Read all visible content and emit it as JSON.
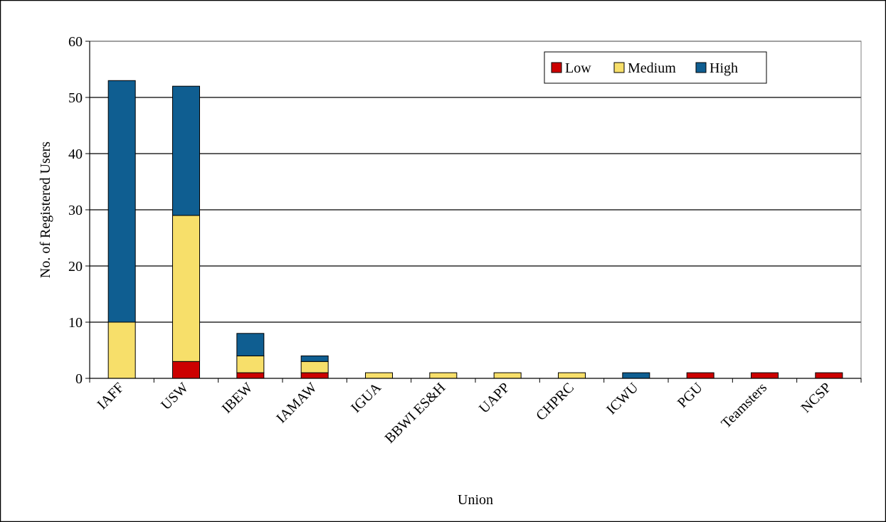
{
  "chart_data": {
    "type": "bar",
    "stacked": true,
    "title": "",
    "xlabel": "Union",
    "ylabel": "No. of Registered Users",
    "ylim": [
      0,
      60
    ],
    "yticks": [
      0,
      10,
      20,
      30,
      40,
      50,
      60
    ],
    "grid": true,
    "legend_position": "top-right",
    "categories": [
      "IAFF",
      "USW",
      "IBEW",
      "IAMAW",
      "IGUA",
      "BBWI ES&H",
      "UAPP",
      "CHPRC",
      "ICWU",
      "PGU",
      "Teamsters",
      "NCSP"
    ],
    "series": [
      {
        "name": "Low",
        "color": "#cc0000",
        "values": [
          0,
          3,
          1,
          1,
          0,
          0,
          0,
          0,
          0,
          1,
          1,
          1
        ]
      },
      {
        "name": "Medium",
        "color": "#f7df6a",
        "values": [
          10,
          26,
          3,
          2,
          1,
          1,
          1,
          1,
          0,
          0,
          0,
          0
        ]
      },
      {
        "name": "High",
        "color": "#0f5e91",
        "values": [
          43,
          23,
          4,
          1,
          0,
          0,
          0,
          0,
          1,
          0,
          0,
          0
        ]
      }
    ]
  }
}
